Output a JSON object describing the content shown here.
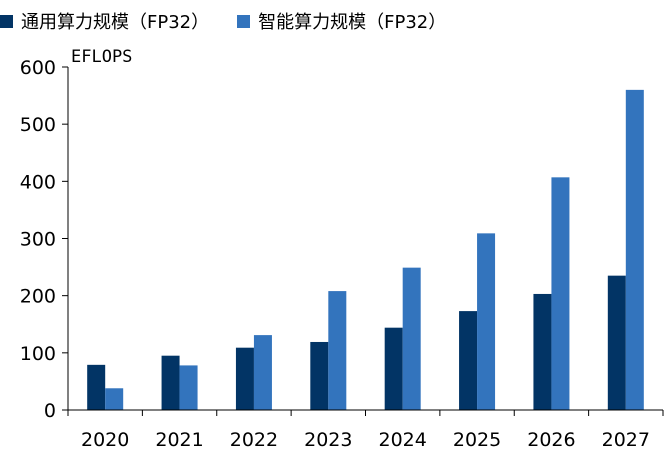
{
  "colors": {
    "series1": "#023465",
    "series2": "#3374BD",
    "axis": "#000000"
  },
  "chart_data": {
    "type": "bar",
    "categories": [
      "2020",
      "2021",
      "2022",
      "2023",
      "2024",
      "2025",
      "2026",
      "2027"
    ],
    "series": [
      {
        "name": "通用算力规模（FP32）",
        "values": [
          79,
          95,
          109,
          119,
          144,
          173,
          203,
          235
        ]
      },
      {
        "name": "智能算力规模（FP32）",
        "values": [
          38,
          78,
          131,
          208,
          249,
          309,
          407,
          560
        ]
      }
    ],
    "ylabel": "EFLOPS",
    "ylim": [
      0,
      600
    ],
    "yticks": [
      0,
      100,
      200,
      300,
      400,
      500,
      600
    ],
    "grid": false,
    "legend": "top-left"
  }
}
